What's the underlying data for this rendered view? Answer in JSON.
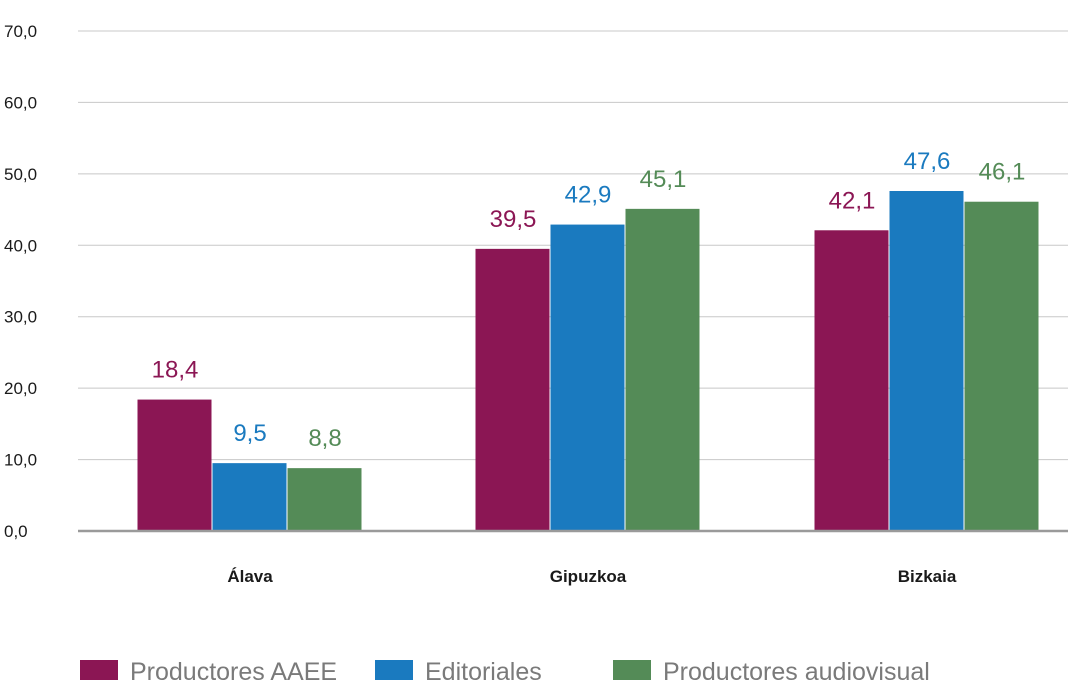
{
  "chart_data": {
    "type": "bar",
    "categories": [
      "Álava",
      "Gipuzkoa",
      "Bizkaia"
    ],
    "series": [
      {
        "name": "Productores AAEE",
        "color": "#8b1654",
        "values": [
          18.4,
          39.5,
          42.1
        ],
        "labels": [
          "18,4",
          "39,5",
          "42,1"
        ]
      },
      {
        "name": "Editoriales",
        "color": "#1a7abf",
        "values": [
          9.5,
          42.9,
          47.6
        ],
        "labels": [
          "9,5",
          "42,9",
          "47,6"
        ]
      },
      {
        "name": "Productores audiovisual",
        "color": "#548b57",
        "values": [
          8.8,
          45.1,
          46.1
        ],
        "labels": [
          "8,8",
          "45,1",
          "46,1"
        ]
      }
    ],
    "ylim": [
      0,
      70
    ],
    "yticks": [
      0,
      10,
      20,
      30,
      40,
      50,
      60,
      70
    ],
    "ytick_labels": [
      "0,0",
      "10,0",
      "20,0",
      "30,0",
      "40,0",
      "50,0",
      "60,0",
      "70,0"
    ],
    "grid": true,
    "legend_position": "bottom-left",
    "title": "",
    "xlabel": "",
    "ylabel": ""
  }
}
